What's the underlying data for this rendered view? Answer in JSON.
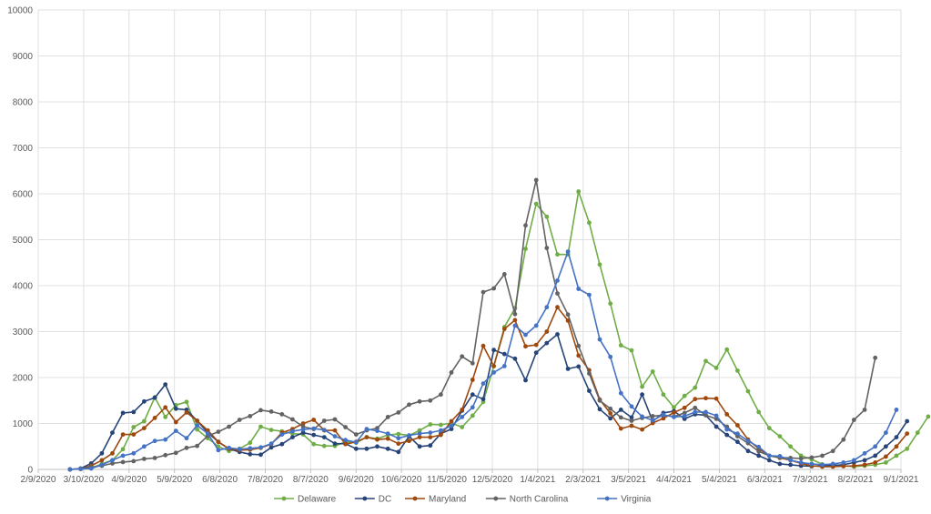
{
  "chart_data": {
    "type": "line",
    "title": "",
    "xlabel": "",
    "ylabel": "",
    "ylim": [
      0,
      10000
    ],
    "yticks": [
      0,
      1000,
      2000,
      3000,
      4000,
      5000,
      6000,
      7000,
      8000,
      9000,
      10000
    ],
    "xlim": [
      "2020-02-09",
      "2021-09-01"
    ],
    "xticks": [
      {
        "date": "2020-02-09",
        "label": "2/9/2020"
      },
      {
        "date": "2020-03-10",
        "label": "3/10/2020"
      },
      {
        "date": "2020-04-09",
        "label": "4/9/2020"
      },
      {
        "date": "2020-05-09",
        "label": "5/9/2020"
      },
      {
        "date": "2020-06-08",
        "label": "6/8/2020"
      },
      {
        "date": "2020-07-08",
        "label": "7/8/2020"
      },
      {
        "date": "2020-08-07",
        "label": "8/7/2020"
      },
      {
        "date": "2020-09-06",
        "label": "9/6/2020"
      },
      {
        "date": "2020-10-06",
        "label": "10/6/2020"
      },
      {
        "date": "2020-11-05",
        "label": "11/5/2020"
      },
      {
        "date": "2020-12-05",
        "label": "12/5/2020"
      },
      {
        "date": "2021-01-04",
        "label": "1/4/2021"
      },
      {
        "date": "2021-02-03",
        "label": "2/3/2021"
      },
      {
        "date": "2021-03-05",
        "label": "3/5/2021"
      },
      {
        "date": "2021-04-04",
        "label": "4/4/2021"
      },
      {
        "date": "2021-05-04",
        "label": "5/4/2021"
      },
      {
        "date": "2021-06-03",
        "label": "6/3/2021"
      },
      {
        "date": "2021-07-03",
        "label": "7/3/2021"
      },
      {
        "date": "2021-08-02",
        "label": "8/2/2021"
      },
      {
        "date": "2021-09-01",
        "label": "9/1/2021"
      }
    ],
    "grid": "horizontal",
    "legend_position": "bottom",
    "start_date": "2020-03-01",
    "interval_days": 7,
    "series": [
      {
        "name": "Delaware",
        "color": "#70ad47",
        "values": [
          0,
          10,
          30,
          120,
          200,
          440,
          920,
          1050,
          1570,
          1140,
          1400,
          1470,
          870,
          680,
          500,
          400,
          450,
          580,
          930,
          860,
          830,
          780,
          760,
          550,
          510,
          510,
          600,
          580,
          700,
          670,
          750,
          770,
          740,
          850,
          980,
          970,
          1010,
          920,
          1170,
          1470,
          2250,
          3100,
          3510,
          4800,
          5780,
          5500,
          4680,
          4680,
          6050,
          5370,
          4460,
          3610,
          2700,
          2590,
          1800,
          2130,
          1630,
          1350,
          1600,
          1780,
          2360,
          2210,
          2610,
          2150,
          1700,
          1250,
          900,
          720,
          500,
          300,
          220,
          110,
          100,
          80,
          60,
          80,
          100,
          150,
          300,
          450,
          800,
          1150
        ]
      },
      {
        "name": "DC",
        "color": "#264478",
        "values": [
          0,
          20,
          130,
          350,
          800,
          1230,
          1250,
          1480,
          1560,
          1850,
          1320,
          1300,
          1060,
          800,
          600,
          450,
          380,
          330,
          320,
          480,
          550,
          700,
          800,
          750,
          700,
          560,
          560,
          450,
          450,
          500,
          450,
          380,
          720,
          500,
          520,
          780,
          880,
          1280,
          1630,
          1530,
          2600,
          2510,
          2410,
          1940,
          2540,
          2750,
          2940,
          2190,
          2240,
          1710,
          1310,
          1110,
          1300,
          1130,
          1630,
          1050,
          1230,
          1270,
          1100,
          1200,
          1180,
          930,
          750,
          600,
          400,
          300,
          200,
          120,
          100,
          80,
          70,
          80,
          90,
          100,
          150,
          200,
          300,
          500,
          700,
          1050
        ]
      },
      {
        "name": "Maryland",
        "color": "#9e480e",
        "values": [
          0,
          10,
          80,
          200,
          350,
          760,
          760,
          900,
          1120,
          1350,
          1030,
          1240,
          1060,
          850,
          600,
          450,
          420,
          430,
          470,
          550,
          800,
          880,
          1000,
          1080,
          850,
          850,
          550,
          600,
          700,
          650,
          670,
          560,
          620,
          700,
          700,
          750,
          1050,
          1300,
          1950,
          2690,
          2250,
          3060,
          3250,
          2680,
          2710,
          3000,
          3530,
          3240,
          2480,
          2160,
          1520,
          1220,
          890,
          950,
          870,
          1010,
          1110,
          1240,
          1340,
          1530,
          1550,
          1540,
          1200,
          960,
          650,
          450,
          300,
          250,
          200,
          130,
          80,
          60,
          60,
          70,
          80,
          100,
          150,
          280,
          500,
          780
        ]
      },
      {
        "name": "North Carolina",
        "color": "#636363",
        "values": [
          0,
          20,
          50,
          80,
          130,
          160,
          180,
          230,
          250,
          310,
          360,
          470,
          510,
          730,
          820,
          930,
          1080,
          1160,
          1290,
          1260,
          1200,
          1090,
          930,
          880,
          1060,
          1090,
          920,
          760,
          850,
          900,
          1140,
          1240,
          1410,
          1480,
          1500,
          1630,
          2110,
          2460,
          2310,
          3860,
          3940,
          4250,
          3380,
          5310,
          6300,
          4820,
          3830,
          3370,
          2690,
          2090,
          1500,
          1320,
          1130,
          1060,
          1120,
          1160,
          1180,
          1150,
          1230,
          1340,
          1180,
          1100,
          930,
          720,
          570,
          390,
          300,
          260,
          250,
          240,
          260,
          300,
          400,
          650,
          1080,
          1300,
          2430
        ]
      },
      {
        "name": "Virginia",
        "color": "#4472c4",
        "values": [
          0,
          10,
          20,
          100,
          200,
          300,
          350,
          500,
          620,
          650,
          840,
          680,
          960,
          780,
          420,
          470,
          440,
          460,
          480,
          560,
          760,
          830,
          870,
          890,
          860,
          720,
          640,
          590,
          880,
          840,
          780,
          680,
          740,
          780,
          800,
          850,
          950,
          1140,
          1350,
          1870,
          2110,
          2250,
          3130,
          2930,
          3130,
          3530,
          4110,
          4740,
          3930,
          3800,
          2830,
          2450,
          1660,
          1370,
          1150,
          1070,
          1190,
          1140,
          1160,
          1250,
          1250,
          1170,
          870,
          780,
          620,
          490,
          300,
          290,
          200,
          150,
          120,
          100,
          120,
          150,
          200,
          350,
          500,
          800,
          1300
        ]
      }
    ]
  }
}
